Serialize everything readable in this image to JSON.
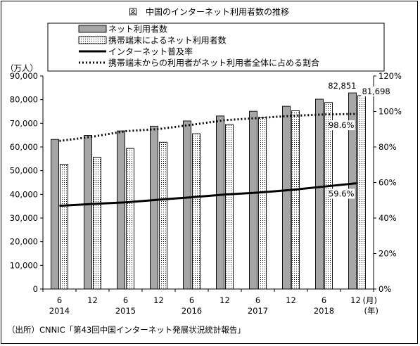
{
  "chart_data": {
    "type": "bar",
    "title": "図　中国のインターネット利用者数の推移",
    "categories": [
      "6",
      "12",
      "6",
      "12",
      "6",
      "12",
      "6",
      "12",
      "6",
      "12"
    ],
    "year_labels": [
      "2014",
      "",
      "2015",
      "",
      "2016",
      "",
      "2017",
      "",
      "2018",
      ""
    ],
    "x_unit_month": "(月)",
    "x_unit_year": "(年)",
    "left_axis": {
      "unit": "（万人）",
      "ylim": [
        0,
        90000
      ],
      "ticks": [
        "0",
        "10,000",
        "20,000",
        "30,000",
        "40,000",
        "50,000",
        "60,000",
        "70,000",
        "80,000",
        "90,000"
      ]
    },
    "right_axis": {
      "ylim": [
        0,
        120
      ],
      "ticks": [
        "0%",
        "20%",
        "40%",
        "60%",
        "80%",
        "100%",
        "120%"
      ]
    },
    "series": [
      {
        "name": "ネット利用者数",
        "kind": "bar",
        "axis": "left",
        "style": "gray",
        "values": [
          63200,
          64900,
          66800,
          68800,
          71000,
          73100,
          75100,
          77200,
          80200,
          82851
        ]
      },
      {
        "name": "携帯端末によるネット利用者数",
        "kind": "bar",
        "axis": "left",
        "style": "dotted",
        "values": [
          52700,
          55700,
          59400,
          62000,
          65600,
          69500,
          72400,
          75300,
          78800,
          81698
        ]
      },
      {
        "name": "インターネット普及率",
        "kind": "line",
        "axis": "right",
        "style": "solid",
        "values": [
          46.9,
          47.9,
          48.8,
          50.3,
          51.7,
          53.2,
          54.3,
          55.8,
          57.7,
          59.6
        ]
      },
      {
        "name": "携帯端末からの利用者がネット利用者全体に占める割合",
        "kind": "line",
        "axis": "right",
        "style": "dotted",
        "values": [
          83.4,
          85.8,
          88.9,
          90.1,
          92.5,
          95.1,
          96.3,
          97.5,
          98.3,
          98.6
        ]
      }
    ],
    "annotations": [
      "82,851",
      "81,698",
      "98.6%",
      "59.6%"
    ],
    "legend": "top",
    "grid": false
  },
  "source": "（出所）CNNIC「第43回中国インターネット発展状況統計報告」"
}
